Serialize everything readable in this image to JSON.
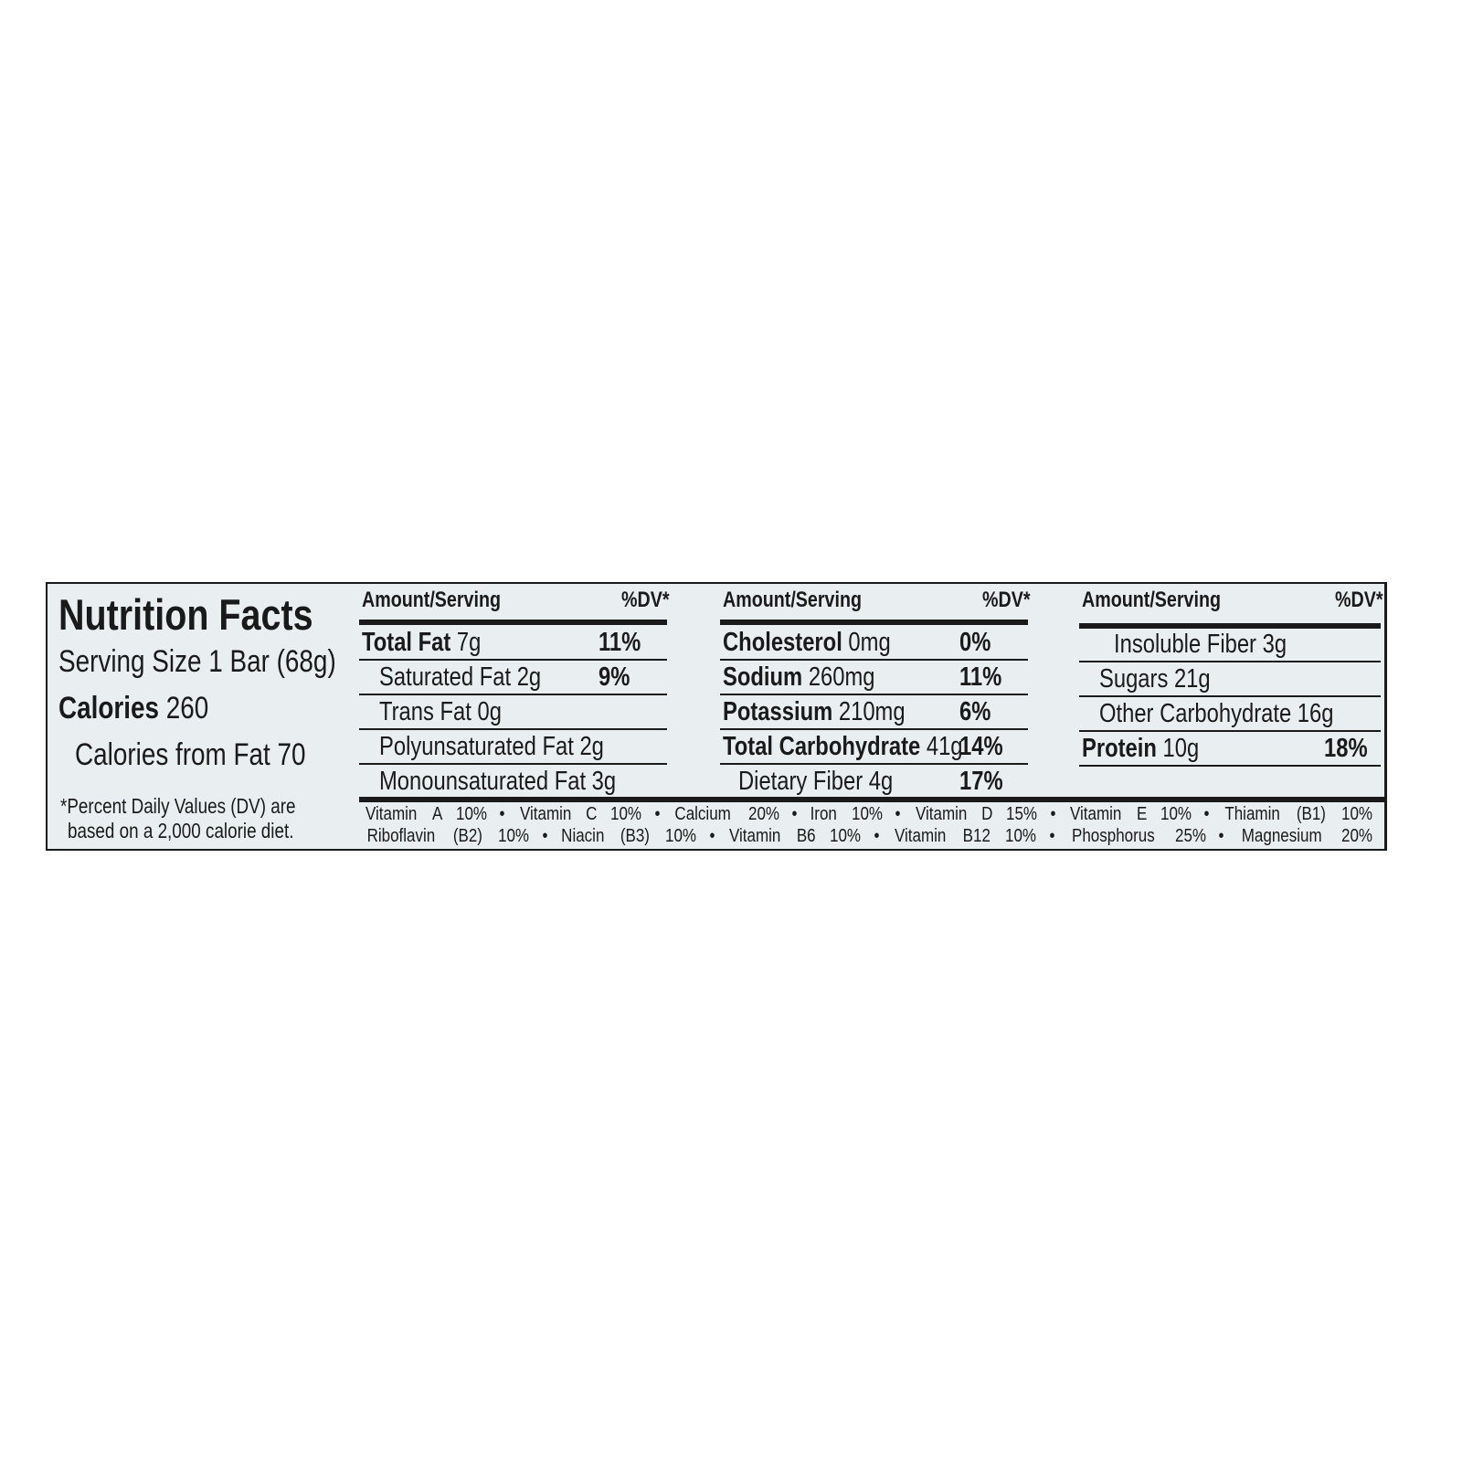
{
  "title": "Nutrition Facts",
  "serving_size": "Serving Size 1 Bar (68g)",
  "calories_label": "Calories",
  "calories_value": "260",
  "calories_from_fat": "Calories from Fat 70",
  "footnote_line1": "*Percent Daily Values (DV) are",
  "footnote_line2": "based on a 2,000 calorie diet.",
  "columns": [
    {
      "header_amount": "Amount/Serving",
      "header_dv": "%DV*",
      "rows": [
        {
          "name": "Total Fat",
          "amount": "7g",
          "bold": true,
          "indent": false,
          "dv": "11%"
        },
        {
          "name": "Saturated Fat",
          "amount": "2g",
          "bold": false,
          "indent": true,
          "dv": "9%"
        },
        {
          "name": "Trans Fat",
          "amount": "0g",
          "bold": false,
          "indent": true,
          "dv": ""
        },
        {
          "name": "Polyunsaturated Fat",
          "amount": "2g",
          "bold": false,
          "indent": true,
          "dv": ""
        },
        {
          "name": "Monounsaturated Fat",
          "amount": "3g",
          "bold": false,
          "indent": true,
          "dv": ""
        }
      ]
    },
    {
      "header_amount": "Amount/Serving",
      "header_dv": "%DV*",
      "rows": [
        {
          "name": "Cholesterol",
          "amount": "0mg",
          "bold": true,
          "indent": false,
          "dv": "0%"
        },
        {
          "name": "Sodium",
          "amount": "260mg",
          "bold": true,
          "indent": false,
          "dv": "11%"
        },
        {
          "name": "Potassium",
          "amount": "210mg",
          "bold": true,
          "indent": false,
          "dv": "6%"
        },
        {
          "name": "Total Carbohydrate",
          "amount": "41g",
          "bold": true,
          "indent": false,
          "dv": "14%"
        },
        {
          "name": "Dietary Fiber",
          "amount": "4g",
          "bold": false,
          "indent": true,
          "dv": "17%"
        }
      ]
    },
    {
      "header_amount": "Amount/Serving",
      "header_dv": "%DV*",
      "rows": [
        {
          "name": "Insoluble Fiber",
          "amount": "3g",
          "bold": false,
          "indent": "double",
          "dv": ""
        },
        {
          "name": "Sugars",
          "amount": "21g",
          "bold": false,
          "indent": true,
          "dv": ""
        },
        {
          "name": "Other Carbohydrate",
          "amount": "16g",
          "bold": false,
          "indent": true,
          "dv": ""
        },
        {
          "name": "Protein",
          "amount": "10g",
          "bold": true,
          "indent": false,
          "dv": "18%"
        }
      ]
    }
  ],
  "vitamins_line1": [
    "Vitamin",
    "A",
    "10%",
    "•",
    "Vitamin",
    "C",
    "10%",
    "•",
    "Calcium",
    "20%",
    "•",
    "Iron",
    "10%",
    "•",
    "Vitamin",
    "D",
    "15%",
    "•",
    "Vitamin",
    "E",
    "10%",
    "•",
    "Thiamin",
    "(B1)",
    "10%"
  ],
  "vitamins_line2": [
    "Riboflavin",
    "(B2)",
    "10%",
    "•",
    "Niacin",
    "(B3)",
    "10%",
    "•",
    "Vitamin",
    "B6",
    "10%",
    "•",
    "Vitamin",
    "B12",
    "10%",
    "•",
    "Phosphorus",
    "25%",
    "•",
    "Magnesium",
    "20%"
  ],
  "colors": {
    "background": "#e9eef1",
    "ink": "#1a1a1a"
  }
}
